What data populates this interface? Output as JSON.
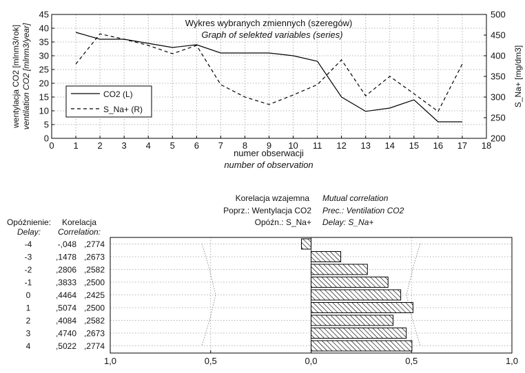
{
  "chart_data": [
    {
      "type": "line",
      "title": "Wykres wybranych zmiennych (szeregów)",
      "subtitle": "Graph of selekted variables (series)",
      "xlabel": "numer obserwacji",
      "xlabel_en": "number of observation",
      "ylabel": "wentylacja CO2 [mlnm3/rok]",
      "ylabel_en": "ventilation CO2 [mlnm3/year]",
      "y2label": "S_Na+ [mg/dm3]",
      "xlim": [
        0,
        18
      ],
      "ylim": [
        0,
        45
      ],
      "y2lim": [
        200,
        500
      ],
      "x_ticks": [
        "0",
        "1",
        "2",
        "3",
        "4",
        "5",
        "6",
        "7",
        "8",
        "9",
        "10",
        "11",
        "12",
        "13",
        "14",
        "15",
        "16",
        "17",
        "18"
      ],
      "y_ticks": [
        "0",
        "5",
        "10",
        "15",
        "20",
        "25",
        "30",
        "35",
        "40",
        "45"
      ],
      "y2_ticks": [
        "200",
        "250",
        "300",
        "350",
        "400",
        "450",
        "500"
      ],
      "grid": true,
      "legend_position": "bottom-left",
      "x": [
        1,
        2,
        3,
        4,
        5,
        6,
        7,
        8,
        9,
        10,
        11,
        12,
        13,
        14,
        15,
        16,
        17
      ],
      "series": [
        {
          "name": "CO2 (L)",
          "axis": "left",
          "style": "solid",
          "values": [
            38.5,
            36,
            36,
            34.5,
            33,
            34,
            31,
            31,
            31,
            30,
            28,
            15,
            9.8,
            11,
            14,
            6,
            6
          ]
        },
        {
          "name": "S_Na+ (R)",
          "axis": "right",
          "style": "dashed",
          "values": [
            380,
            453,
            440,
            425,
            405,
            425,
            330,
            300,
            282,
            305,
            330,
            390,
            303,
            350,
            308,
            265,
            380
          ]
        }
      ]
    },
    {
      "type": "bar",
      "title": "Korelacja wzajemna",
      "title_en": "Mutual correlation",
      "var1": "Poprz.: Wentylacja CO2",
      "var1_en": "Prec.: Ventilation CO2",
      "var2": "Opóźn.: S_Na+",
      "var2_en": "Delay: S_Na+",
      "col_delay": "Opóźnienie:",
      "col_delay_en": "Delay:",
      "col_corr": "Korelacja",
      "col_corr_en": "Correlation:",
      "xlim": [
        -1,
        1
      ],
      "x_ticks": [
        "1,0",
        "0,5",
        "0,0",
        "0,5",
        "1,0"
      ],
      "grid": true,
      "rows": [
        {
          "delay": "-4",
          "corr": "-,048",
          "se": ",2774",
          "value": -0.048,
          "bound": 0.5437
        },
        {
          "delay": "-3",
          "corr": ",1478",
          "se": ",2673",
          "value": 0.1478,
          "bound": 0.5239
        },
        {
          "delay": "-2",
          "corr": ",2806",
          "se": ",2582",
          "value": 0.2806,
          "bound": 0.5061
        },
        {
          "delay": "-1",
          "corr": ",3833",
          "se": ",2500",
          "value": 0.3833,
          "bound": 0.49
        },
        {
          "delay": "0",
          "corr": ",4464",
          "se": ",2425",
          "value": 0.4464,
          "bound": 0.4753
        },
        {
          "delay": "1",
          "corr": ",5074",
          "se": ",2500",
          "value": 0.5074,
          "bound": 0.49
        },
        {
          "delay": "2",
          "corr": ",4084",
          "se": ",2582",
          "value": 0.4084,
          "bound": 0.5061
        },
        {
          "delay": "3",
          "corr": ",4740",
          "se": ",2673",
          "value": 0.474,
          "bound": 0.5239
        },
        {
          "delay": "4",
          "corr": ",5022",
          "se": ",2774",
          "value": 0.5022,
          "bound": 0.5437
        }
      ]
    }
  ]
}
